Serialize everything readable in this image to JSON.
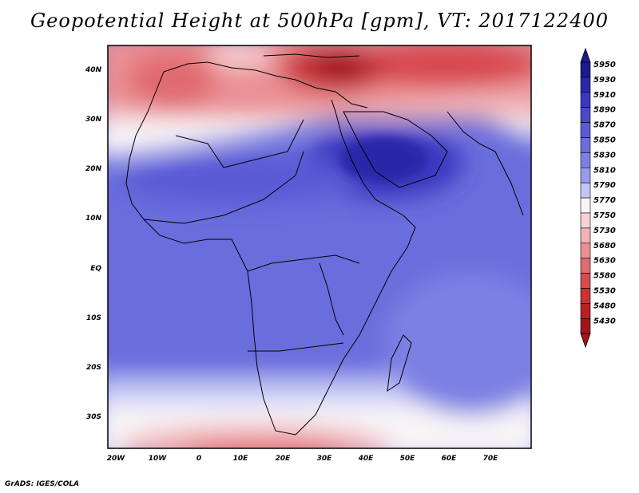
{
  "title": "Geopotential Height at 500hPa [gpm], VT: 2017122400",
  "footer": "GrADS: IGES/COLA",
  "map": {
    "region": "Africa",
    "lat_labels": [
      "40N",
      "30N",
      "20N",
      "10N",
      "EQ",
      "10S",
      "20S",
      "30S"
    ],
    "lon_labels": [
      "20W",
      "10W",
      "0",
      "10E",
      "20E",
      "30E",
      "40E",
      "50E",
      "60E",
      "70E"
    ]
  },
  "colorbar": {
    "levels": [
      "5950",
      "5930",
      "5910",
      "5890",
      "5870",
      "5850",
      "5830",
      "5810",
      "5790",
      "5770",
      "5750",
      "5730",
      "5680",
      "5630",
      "5580",
      "5530",
      "5480",
      "5430"
    ],
    "colors": [
      "#1c1a8f",
      "#2a28a8",
      "#3b38bf",
      "#4a48cc",
      "#5a5ad6",
      "#6a6ddc",
      "#7d80e3",
      "#989bea",
      "#c3c6f5",
      "#f8f4f8",
      "#f6d3d6",
      "#f0b3b7",
      "#ea9094",
      "#e06b70",
      "#d84a4f",
      "#c93237",
      "#b62024",
      "#a1161a"
    ]
  }
}
